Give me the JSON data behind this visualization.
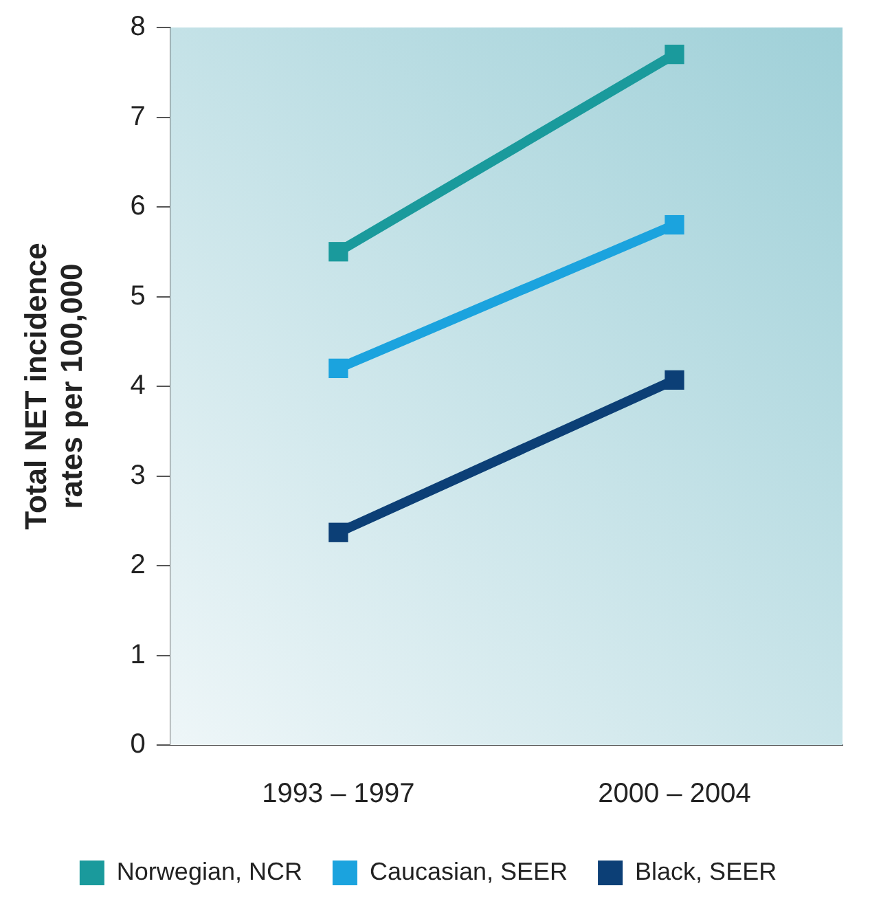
{
  "chart_data": {
    "type": "line",
    "ylabel": "Total NET incidence rates per 100,000",
    "categories": [
      "1993 – 1997",
      "2000 – 2004"
    ],
    "series": [
      {
        "name": "Norwegian, NCR",
        "color": "#1a9a9c",
        "values": [
          5.5,
          7.7
        ]
      },
      {
        "name": "Caucasian, SEER",
        "color": "#1ba3de",
        "values": [
          4.2,
          5.8
        ]
      },
      {
        "name": "Black, SEER",
        "color": "#0c3f76",
        "values": [
          2.37,
          4.07
        ]
      }
    ],
    "ylim": [
      0,
      8
    ],
    "yticks": [
      0,
      1,
      2,
      3,
      4,
      5,
      6,
      7,
      8
    ],
    "grid": false,
    "legend": "bottom",
    "marker": "square",
    "line_style": "solid"
  }
}
